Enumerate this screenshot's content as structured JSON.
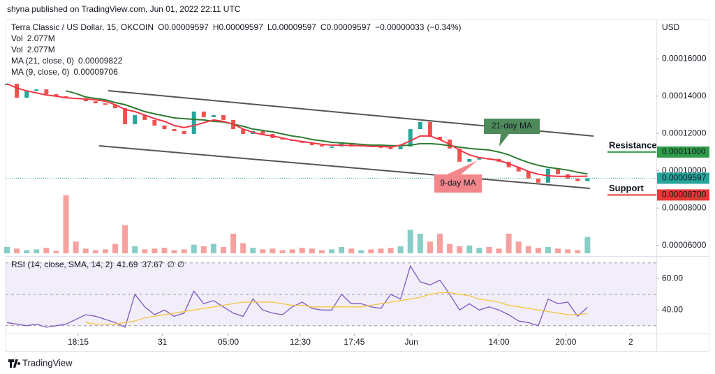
{
  "header": {
    "publisher": "shyna published on TradingView.com, Jun 01, 2022 22:11 UTC"
  },
  "footer": {
    "brand": "TradingView"
  },
  "chart_data": [
    {
      "type": "price",
      "title": "Terra Classic / US Dollar, 15, OKCOIN",
      "quote": [
        {
          "label": "O",
          "value": 9.597e-05
        },
        {
          "label": "H",
          "value": 9.597e-05
        },
        {
          "label": "L",
          "value": 9.597e-05
        },
        {
          "label": "C",
          "value": 9.597e-05
        }
      ],
      "change": {
        "value": -3.3e-07,
        "label": "−0.00000033"
      },
      "change_pct": {
        "value": -0.34,
        "label": "(−0.34%)"
      },
      "axis_unit": "USD",
      "xlim": [
        0,
        66
      ],
      "xticks": [
        {
          "value": 7.24,
          "label": "18:15"
        },
        {
          "value": 15.8,
          "label": "31"
        },
        {
          "value": 22.5,
          "label": "05:00"
        },
        {
          "value": 29.8,
          "label": "12:30"
        },
        {
          "value": 35.3,
          "label": "17:45"
        },
        {
          "value": 41.1,
          "label": "Jun"
        },
        {
          "value": 50,
          "label": "14:00"
        },
        {
          "value": 56.8,
          "label": "20:00"
        },
        {
          "value": 63.4,
          "label": "2"
        }
      ],
      "ylim": [
        5.5e-05,
        0.000181
      ],
      "yticks": [
        {
          "value": 6e-05,
          "label": "0.00006000"
        },
        {
          "value": 8e-05,
          "label": "0.00008000"
        },
        {
          "value": 0.0001,
          "label": "0.00010000"
        },
        {
          "value": 0.00012,
          "label": "0.00012000"
        },
        {
          "value": 0.00014,
          "label": "0.00014000"
        },
        {
          "value": 0.00016,
          "label": "0.00016000"
        }
      ],
      "close": {
        "up_color": "#26a69a",
        "down_color": "#ef5350",
        "values": [
          0.0001466,
          0.0001391,
          0.0001428,
          0.0001436,
          0.000141,
          0.0001399,
          0.0001391,
          0.0001384,
          0.0001372,
          0.0001361,
          0.0001354,
          0.0001335,
          0.0001249,
          0.0001298,
          0.0001272,
          0.0001242,
          0.0001223,
          0.0001212,
          0.0001197,
          0.0001317,
          0.0001287,
          0.0001298,
          0.0001272,
          0.0001223,
          0.0001197,
          0.0001212,
          0.0001197,
          0.0001175,
          0.0001167,
          0.000116,
          0.0001149,
          0.0001137,
          0.000113,
          0.000113,
          0.0001149,
          0.000113,
          0.0001137,
          0.000113,
          0.0001123,
          0.0001115,
          0.000113,
          0.0001223,
          0.0001261,
          0.0001182,
          0.0001167,
          0.0001119,
          0.0001048,
          0.0001063,
          0.0001067,
          0.0001063,
          0.0001048,
          0.0001018,
          9.96e-05,
          9.58e-05,
          9.36e-05,
          0.0001011,
          9.81e-05,
          9.58e-05,
          9.44e-05,
          9.597e-05
        ]
      },
      "series": [
        {
          "name": "MA (21, close, 0)",
          "color": "#2e7d32",
          "values": [
            null,
            null,
            null,
            null,
            null,
            null,
            0.0001428,
            0.0001414,
            0.0001395,
            0.0001387,
            0.000138,
            0.0001365,
            0.0001354,
            0.0001335,
            0.0001317,
            0.0001305,
            0.0001294,
            0.0001283,
            0.0001279,
            0.0001275,
            0.0001272,
            0.0001264,
            0.0001261,
            0.0001249,
            0.0001238,
            0.0001223,
            0.0001216,
            0.0001208,
            0.0001197,
            0.0001186,
            0.0001179,
            0.0001167,
            0.000116,
            0.0001152,
            0.0001149,
            0.0001145,
            0.0001141,
            0.0001137,
            0.0001137,
            0.0001134,
            0.0001134,
            0.0001137,
            0.0001145,
            0.0001145,
            0.0001141,
            0.0001134,
            0.0001126,
            0.0001119,
            0.0001115,
            0.0001111,
            0.00011,
            0.0001085,
            0.0001063,
            0.0001044,
            0.0001029,
            0.0001018,
            0.0001011,
            0.0001003,
            9.92e-05,
            9.822e-05
          ]
        },
        {
          "name": "MA (9, close, 0)",
          "color": "#f23645",
          "values": [
            0.0001466,
            0.0001443,
            0.0001428,
            0.0001417,
            0.0001406,
            0.0001399,
            0.0001391,
            0.0001387,
            0.0001384,
            0.000138,
            0.0001372,
            0.0001354,
            0.0001328,
            0.0001317,
            0.0001298,
            0.0001279,
            0.0001264,
            0.0001242,
            0.0001231,
            0.0001242,
            0.0001257,
            0.0001272,
            0.0001264,
            0.0001249,
            0.0001223,
            0.0001205,
            0.0001193,
            0.0001186,
            0.0001175,
            0.0001164,
            0.0001156,
            0.0001149,
            0.0001141,
            0.0001137,
            0.0001137,
            0.0001134,
            0.0001134,
            0.000113,
            0.000113,
            0.0001126,
            0.0001137,
            0.000116,
            0.0001186,
            0.0001186,
            0.0001167,
            0.0001141,
            0.0001111,
            0.0001085,
            0.000107,
            0.0001063,
            0.0001055,
            0.0001037,
            0.0001018,
            9.96e-05,
            9.81e-05,
            9.73e-05,
            9.7e-05,
            9.7e-05,
            9.7e-05,
            9.706e-05
          ]
        }
      ],
      "volume_legend": [
        {
          "name": "Vol",
          "value": 2077000,
          "label": "2.077M"
        },
        {
          "name": "Vol",
          "value": 2077000,
          "label": "2.077M"
        }
      ],
      "volume": {
        "ylim": [
          0,
          30000000
        ],
        "values": [
          800000,
          600000,
          400000,
          500000,
          700000,
          300000,
          7400000,
          1500000,
          600000,
          400000,
          500000,
          1200000,
          3600000,
          900000,
          500000,
          600000,
          700000,
          400000,
          500000,
          1100000,
          900000,
          1200000,
          800000,
          2500000,
          1300000,
          700000,
          500000,
          600000,
          400000,
          500000,
          700000,
          600000,
          400000,
          500000,
          800000,
          600000,
          400000,
          500000,
          600000,
          700000,
          900000,
          3000000,
          2500000,
          1500000,
          2500000,
          1200000,
          900000,
          1000000,
          700000,
          800000,
          600000,
          2500000,
          1500000,
          900000,
          700000,
          800000,
          600000,
          500000,
          400000,
          2077000
        ]
      },
      "annotations": [
        {
          "text": "21-day MA",
          "color": "#4f8a5b"
        },
        {
          "text": "9-day MA",
          "color": "#f3868b"
        }
      ],
      "levels": [
        {
          "text": "Resistance",
          "text_color": "#e53935",
          "color": "#2e9c48",
          "value": 0.00011,
          "label": "0.00011000"
        },
        {
          "text": "Support",
          "text_color": "#2e9c48",
          "color": "#e53935",
          "value": 8.7e-05,
          "label": "0.00008700"
        }
      ]
    },
    {
      "type": "rsi",
      "title": "RSI (14, close, SMA, 14, 2)",
      "legend_extra": [
        "∅",
        "∅"
      ],
      "ylim": [
        25,
        73
      ],
      "yticks": [
        {
          "value": 40,
          "label": "40.00"
        },
        {
          "value": 60,
          "label": "60.00"
        }
      ],
      "band_lines": [
        70,
        50,
        30
      ],
      "band_color": "#7e57c2",
      "series": [
        {
          "color": "#7e57c2",
          "values": [
            32,
            31,
            30,
            31,
            29,
            30,
            31,
            34,
            37,
            36,
            34,
            32,
            29,
            50,
            42,
            37,
            40,
            36,
            38,
            52,
            44,
            46,
            42,
            38,
            36,
            47,
            40,
            38,
            37,
            42,
            45,
            41,
            40,
            40,
            50,
            44,
            44,
            42,
            41,
            50,
            47,
            68,
            58,
            56,
            59,
            50,
            40,
            44,
            40,
            42,
            40,
            37,
            33,
            32,
            30,
            47,
            44,
            45,
            36,
            41.69
          ]
        },
        {
          "color": "#f5c542",
          "values": [
            null,
            null,
            null,
            null,
            null,
            null,
            null,
            null,
            32,
            31,
            31,
            31,
            32,
            33,
            35,
            36,
            37,
            38,
            39,
            40,
            41,
            42,
            43,
            44,
            45,
            45,
            45,
            45,
            44,
            43,
            43,
            42,
            42,
            42,
            42,
            42,
            42,
            43,
            44,
            45,
            46,
            47,
            48,
            50,
            51,
            51,
            50,
            49,
            47,
            46,
            45,
            43,
            42,
            41,
            40,
            39,
            38,
            37,
            37,
            37.67
          ]
        }
      ]
    }
  ]
}
